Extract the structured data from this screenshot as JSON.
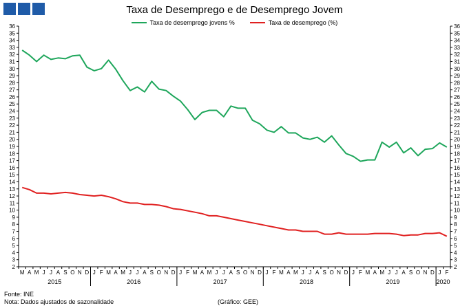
{
  "colors": {
    "logo": "#1f5ba8",
    "youth": "#1ea65b",
    "total": "#e02020",
    "axis": "#000000"
  },
  "footer": {
    "source": "Fonte: INE",
    "note": "Nota: Dados ajustados de sazonalidade",
    "credit": "(Gráfico: GEE)"
  },
  "chart_data": {
    "type": "line",
    "title": "Taxa de Desemprego e de Desemprego Jovem",
    "ylim": [
      2,
      36
    ],
    "y_ticks": [
      2,
      3,
      4,
      5,
      6,
      7,
      8,
      9,
      10,
      11,
      12,
      13,
      14,
      15,
      16,
      17,
      18,
      19,
      20,
      21,
      22,
      23,
      24,
      25,
      26,
      27,
      28,
      29,
      30,
      31,
      32,
      33,
      34,
      35,
      36
    ],
    "grid": false,
    "legend_position": "top-center",
    "x": [
      "M",
      "A",
      "M",
      "J",
      "J",
      "A",
      "S",
      "O",
      "N",
      "D",
      "J",
      "F",
      "M",
      "A",
      "M",
      "J",
      "J",
      "A",
      "S",
      "O",
      "N",
      "D",
      "J",
      "F",
      "M",
      "A",
      "M",
      "J",
      "J",
      "A",
      "S",
      "O",
      "N",
      "D",
      "J",
      "F",
      "M",
      "A",
      "M",
      "J",
      "J",
      "A",
      "S",
      "O",
      "N",
      "D",
      "J",
      "F",
      "M",
      "A",
      "M",
      "J",
      "J",
      "A",
      "S",
      "O",
      "N",
      "D",
      "J",
      "F"
    ],
    "years": [
      {
        "label": "2015",
        "start": 0,
        "end": 9
      },
      {
        "label": "2016",
        "start": 10,
        "end": 21
      },
      {
        "label": "2017",
        "start": 22,
        "end": 33
      },
      {
        "label": "2018",
        "start": 34,
        "end": 45
      },
      {
        "label": "2019",
        "start": 46,
        "end": 57
      },
      {
        "label": "2020",
        "start": 58,
        "end": 59
      }
    ],
    "series": [
      {
        "name": "Taxa de desemprego jovens %",
        "values": [
          32.6,
          31.9,
          31.0,
          31.9,
          31.3,
          31.5,
          31.4,
          31.8,
          31.9,
          30.2,
          29.7,
          30.0,
          31.2,
          29.9,
          28.3,
          26.9,
          27.4,
          26.7,
          28.2,
          27.1,
          26.9,
          26.1,
          25.4,
          24.2,
          22.8,
          23.8,
          24.1,
          24.1,
          23.2,
          24.7,
          24.4,
          24.4,
          22.7,
          22.2,
          21.3,
          21.0,
          21.8,
          20.9,
          20.9,
          20.2,
          20.0,
          20.3,
          19.6,
          20.5,
          19.2,
          18.0,
          17.6,
          16.9,
          17.1,
          17.1,
          19.6,
          18.9,
          19.6,
          18.1,
          18.8,
          17.7,
          18.6,
          18.7,
          19.5,
          18.9
        ]
      },
      {
        "name": "Taxa de desemprego (%)",
        "values": [
          13.2,
          12.9,
          12.4,
          12.4,
          12.3,
          12.4,
          12.5,
          12.4,
          12.2,
          12.1,
          12.0,
          12.1,
          11.9,
          11.6,
          11.2,
          11.0,
          11.0,
          10.8,
          10.8,
          10.7,
          10.5,
          10.2,
          10.1,
          9.9,
          9.7,
          9.5,
          9.2,
          9.2,
          9.0,
          8.8,
          8.6,
          8.4,
          8.2,
          8.0,
          7.8,
          7.6,
          7.4,
          7.2,
          7.2,
          7.0,
          7.0,
          7.0,
          6.6,
          6.6,
          6.8,
          6.6,
          6.6,
          6.6,
          6.6,
          6.7,
          6.7,
          6.7,
          6.6,
          6.4,
          6.5,
          6.5,
          6.7,
          6.7,
          6.8,
          6.3
        ]
      }
    ]
  }
}
